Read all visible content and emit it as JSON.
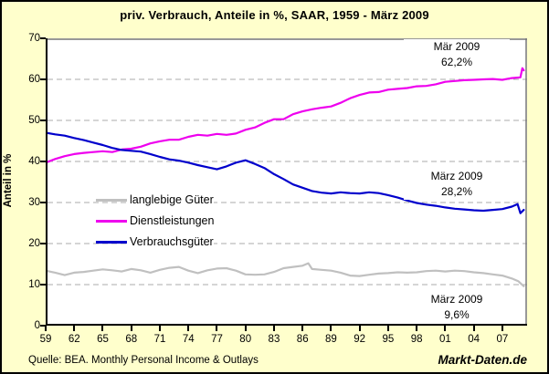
{
  "footer": {
    "source": "Quelle: BEA. Monthly Personal Income & Outlays",
    "watermark": "Markt-Daten.de"
  },
  "chart_data": {
    "type": "line",
    "title": "priv. Verbrauch, Anteile in %, SAAR, 1959 - März 2009",
    "xlabel": "",
    "ylabel": "Anteil in %",
    "ylim": [
      0,
      70
    ],
    "xlim": [
      1959,
      2009.6
    ],
    "grid": "horizontal-dashed",
    "legend_position": "inside-middle-left",
    "y_ticks": [
      0,
      10,
      20,
      30,
      40,
      50,
      60,
      70
    ],
    "grid_values": [
      10,
      20,
      30,
      40,
      50,
      60
    ],
    "x_ticks": [
      {
        "year": 1959,
        "label": "59"
      },
      {
        "year": 1962,
        "label": "62"
      },
      {
        "year": 1965,
        "label": "65"
      },
      {
        "year": 1968,
        "label": "68"
      },
      {
        "year": 1971,
        "label": "71"
      },
      {
        "year": 1974,
        "label": "74"
      },
      {
        "year": 1977,
        "label": "77"
      },
      {
        "year": 1980,
        "label": "80"
      },
      {
        "year": 1983,
        "label": "83"
      },
      {
        "year": 1986,
        "label": "86"
      },
      {
        "year": 1989,
        "label": "89"
      },
      {
        "year": 1992,
        "label": "92"
      },
      {
        "year": 1995,
        "label": "95"
      },
      {
        "year": 1998,
        "label": "98"
      },
      {
        "year": 2001,
        "label": "01"
      },
      {
        "year": 2004,
        "label": "04"
      },
      {
        "year": 2007,
        "label": "07"
      }
    ],
    "palette": {
      "background": "#FFFFCC",
      "plot_background": "#FFFFFF",
      "grid": "#ABABAB",
      "axis": "#000000",
      "frame": "#777777"
    },
    "series": [
      {
        "name": "langlebige Güter",
        "color": "#C0C0C0",
        "points": [
          [
            1959,
            13.4
          ],
          [
            1960,
            12.9
          ],
          [
            1961,
            12.3
          ],
          [
            1962,
            12.9
          ],
          [
            1963,
            13.1
          ],
          [
            1964,
            13.4
          ],
          [
            1965,
            13.7
          ],
          [
            1966,
            13.5
          ],
          [
            1967,
            13.2
          ],
          [
            1968,
            13.8
          ],
          [
            1969,
            13.5
          ],
          [
            1970,
            12.9
          ],
          [
            1971,
            13.6
          ],
          [
            1972,
            14.1
          ],
          [
            1973,
            14.3
          ],
          [
            1974,
            13.4
          ],
          [
            1975,
            12.8
          ],
          [
            1976,
            13.5
          ],
          [
            1977,
            13.9
          ],
          [
            1978,
            14.0
          ],
          [
            1979,
            13.4
          ],
          [
            1980,
            12.5
          ],
          [
            1981,
            12.4
          ],
          [
            1982,
            12.5
          ],
          [
            1983,
            13.1
          ],
          [
            1984,
            14.0
          ],
          [
            1985,
            14.3
          ],
          [
            1986,
            14.6
          ],
          [
            1986.6,
            15.2
          ],
          [
            1987,
            13.8
          ],
          [
            1988,
            13.6
          ],
          [
            1989,
            13.4
          ],
          [
            1990,
            12.9
          ],
          [
            1991,
            12.2
          ],
          [
            1992,
            12.1
          ],
          [
            1993,
            12.4
          ],
          [
            1994,
            12.7
          ],
          [
            1995,
            12.8
          ],
          [
            1996,
            13.0
          ],
          [
            1997,
            12.9
          ],
          [
            1998,
            13.0
          ],
          [
            1999,
            13.3
          ],
          [
            2000,
            13.4
          ],
          [
            2001,
            13.2
          ],
          [
            2002,
            13.4
          ],
          [
            2003,
            13.3
          ],
          [
            2004,
            13.0
          ],
          [
            2005,
            12.8
          ],
          [
            2006,
            12.5
          ],
          [
            2007,
            12.2
          ],
          [
            2008,
            11.5
          ],
          [
            2008.7,
            10.8
          ],
          [
            2009.25,
            9.6
          ]
        ]
      },
      {
        "name": "Dienstleistungen",
        "color": "#EE00EE",
        "points": [
          [
            1959,
            39.7
          ],
          [
            1960,
            40.6
          ],
          [
            1961,
            41.3
          ],
          [
            1962,
            41.8
          ],
          [
            1963,
            42.1
          ],
          [
            1964,
            42.3
          ],
          [
            1965,
            42.5
          ],
          [
            1966,
            42.3
          ],
          [
            1967,
            42.9
          ],
          [
            1968,
            43.1
          ],
          [
            1969,
            43.6
          ],
          [
            1970,
            44.4
          ],
          [
            1971,
            44.9
          ],
          [
            1972,
            45.3
          ],
          [
            1973,
            45.3
          ],
          [
            1974,
            46.0
          ],
          [
            1975,
            46.5
          ],
          [
            1976,
            46.3
          ],
          [
            1977,
            46.7
          ],
          [
            1978,
            46.5
          ],
          [
            1979,
            46.8
          ],
          [
            1980,
            47.7
          ],
          [
            1981,
            48.3
          ],
          [
            1982,
            49.4
          ],
          [
            1983,
            50.3
          ],
          [
            1984,
            50.3
          ],
          [
            1985,
            51.5
          ],
          [
            1986,
            52.2
          ],
          [
            1987,
            52.7
          ],
          [
            1988,
            53.1
          ],
          [
            1989,
            53.4
          ],
          [
            1990,
            54.3
          ],
          [
            1991,
            55.4
          ],
          [
            1992,
            56.2
          ],
          [
            1993,
            56.8
          ],
          [
            1994,
            56.9
          ],
          [
            1995,
            57.5
          ],
          [
            1996,
            57.7
          ],
          [
            1997,
            57.9
          ],
          [
            1998,
            58.3
          ],
          [
            1999,
            58.4
          ],
          [
            2000,
            58.8
          ],
          [
            2001,
            59.4
          ],
          [
            2002,
            59.6
          ],
          [
            2003,
            59.8
          ],
          [
            2004,
            59.9
          ],
          [
            2005,
            60.0
          ],
          [
            2006,
            60.1
          ],
          [
            2007,
            59.9
          ],
          [
            2008,
            60.3
          ],
          [
            2008.9,
            60.5
          ],
          [
            2009.1,
            62.7
          ],
          [
            2009.25,
            62.2
          ]
        ]
      },
      {
        "name": "Verbrauchsgüter",
        "color": "#0000CC",
        "points": [
          [
            1959,
            47.0
          ],
          [
            1960,
            46.6
          ],
          [
            1961,
            46.3
          ],
          [
            1962,
            45.7
          ],
          [
            1963,
            45.2
          ],
          [
            1964,
            44.6
          ],
          [
            1965,
            44.0
          ],
          [
            1966,
            43.3
          ],
          [
            1967,
            42.8
          ],
          [
            1968,
            42.6
          ],
          [
            1969,
            42.4
          ],
          [
            1970,
            41.8
          ],
          [
            1971,
            41.1
          ],
          [
            1972,
            40.5
          ],
          [
            1973,
            40.2
          ],
          [
            1974,
            39.7
          ],
          [
            1975,
            39.1
          ],
          [
            1976,
            38.6
          ],
          [
            1977,
            38.1
          ],
          [
            1978,
            38.8
          ],
          [
            1979,
            39.7
          ],
          [
            1980,
            40.3
          ],
          [
            1981,
            39.4
          ],
          [
            1982,
            38.4
          ],
          [
            1983,
            36.9
          ],
          [
            1984,
            35.7
          ],
          [
            1985,
            34.4
          ],
          [
            1986,
            33.6
          ],
          [
            1987,
            32.8
          ],
          [
            1988,
            32.4
          ],
          [
            1989,
            32.2
          ],
          [
            1990,
            32.5
          ],
          [
            1991,
            32.3
          ],
          [
            1992,
            32.2
          ],
          [
            1993,
            32.5
          ],
          [
            1994,
            32.3
          ],
          [
            1995,
            31.8
          ],
          [
            1996,
            31.2
          ],
          [
            1997,
            30.5
          ],
          [
            1998,
            29.9
          ],
          [
            1999,
            29.5
          ],
          [
            2000,
            29.2
          ],
          [
            2001,
            28.8
          ],
          [
            2002,
            28.5
          ],
          [
            2003,
            28.3
          ],
          [
            2004,
            28.1
          ],
          [
            2005,
            28.0
          ],
          [
            2006,
            28.2
          ],
          [
            2007,
            28.4
          ],
          [
            2008,
            29.0
          ],
          [
            2008.6,
            29.6
          ],
          [
            2008.9,
            27.4
          ],
          [
            2009.25,
            28.2
          ]
        ]
      }
    ],
    "annotations": [
      {
        "lines": [
          "Mär 2009",
          "62,2%"
        ]
      },
      {
        "lines": [
          "März 2009",
          "28,2%"
        ]
      },
      {
        "lines": [
          "März 2009",
          "9,6%"
        ]
      }
    ]
  }
}
